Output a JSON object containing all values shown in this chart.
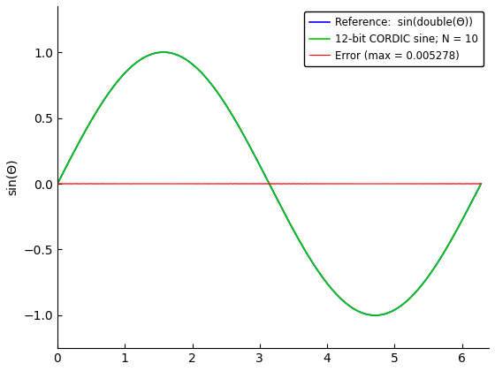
{
  "ylabel": "sin(Θ)",
  "xlim": [
    0,
    6.4
  ],
  "ylim": [
    -1.25,
    1.35
  ],
  "xticks": [
    0,
    1,
    2,
    3,
    4,
    5,
    6
  ],
  "yticks": [
    -1,
    -0.5,
    0,
    0.5,
    1
  ],
  "legend_labels": [
    "Reference:  sin(double(Θ))",
    "12-bit CORDIC sine; N = 10",
    "Error (max = 0.005278)"
  ],
  "ref_color": "#0000ff",
  "cordic_color": "#00cc00",
  "error_color": "#ff0000",
  "ref_linewidth": 1.2,
  "cordic_linewidth": 1.2,
  "error_linewidth": 0.8,
  "N_cordic": 10,
  "n_points": 1000,
  "background_color": "#ffffff",
  "legend_fontsize": 8.5,
  "axis_fontsize": 10,
  "tick_fontsize": 10
}
